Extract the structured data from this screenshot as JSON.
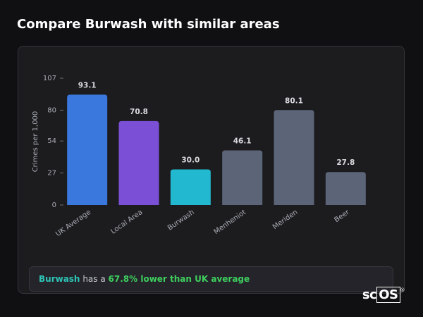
{
  "header": {
    "title": "Compare Burwash with similar areas"
  },
  "chart_data": {
    "type": "bar",
    "y_label": "Crimes per 1,000",
    "categories": [
      "UK Average",
      "Local Area",
      "Burwash",
      "Menheniot",
      "Meriden",
      "Beer"
    ],
    "values": [
      93.1,
      70.8,
      30.0,
      46.1,
      80.1,
      27.8
    ],
    "value_labels": [
      "93.1",
      "70.8",
      "30.0",
      "46.1",
      "80.1",
      "27.8"
    ],
    "colors": [
      "#3b78de",
      "#7b4fd6",
      "#21b8d0",
      "#5b6577",
      "#5b6577",
      "#5b6577"
    ],
    "ylim": [
      0,
      107
    ],
    "yticks": [
      0,
      27,
      54,
      80,
      107
    ],
    "grid": false
  },
  "summary": {
    "area": "Burwash",
    "text": "has a",
    "highlight": "67.8% lower than UK average"
  },
  "logo": {
    "prefix": "sc",
    "boxed": "OS",
    "mark": "®"
  }
}
